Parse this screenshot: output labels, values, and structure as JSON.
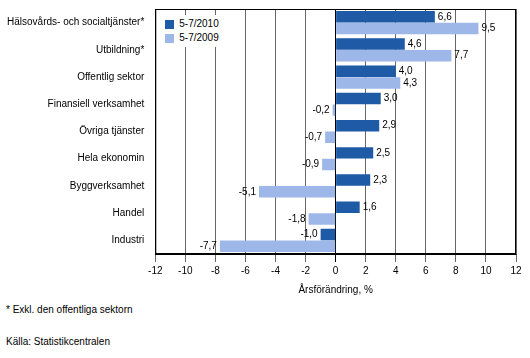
{
  "chart_data": {
    "type": "bar",
    "orientation": "horizontal",
    "categories": [
      "Hälsovårds- och socialtjänster*",
      "Utbildning*",
      "Offentlig sektor",
      "Finansiell verksamhet",
      "Övriga tjänster",
      "Hela ekonomin",
      "Byggverksamhet",
      "Handel",
      "Industri"
    ],
    "series": [
      {
        "name": "5-7/2010",
        "color": "#1f5aa6",
        "values": [
          6.6,
          4.6,
          4.0,
          3.0,
          2.9,
          2.5,
          2.3,
          1.6,
          -1.0
        ],
        "value_labels": [
          "6,6",
          "4,6",
          "4,0",
          "3,0",
          "2,9",
          "2,5",
          "2,3",
          "1,6",
          "-1,0"
        ]
      },
      {
        "name": "5-7/2009",
        "color": "#9db8e8",
        "values": [
          9.5,
          7.7,
          4.3,
          -0.2,
          -0.7,
          -0.9,
          -5.1,
          -1.8,
          -7.7
        ],
        "value_labels": [
          "9,5",
          "7,7",
          "4,3",
          "-0,2",
          "-0,7",
          "-0,9",
          "-5,1",
          "-1,8",
          "-7,7"
        ]
      }
    ],
    "xlim": [
      -12,
      12
    ],
    "xticks": [
      -12,
      -10,
      -8,
      -6,
      -4,
      -2,
      0,
      2,
      4,
      6,
      8,
      10,
      12
    ],
    "xlabel": "Årsförändring, %",
    "data_labels": true,
    "legend": "upper left",
    "grid": true,
    "footnote": "* Exkl. den offentliga sektorn",
    "source": "Källa: Statistikcentralen"
  }
}
